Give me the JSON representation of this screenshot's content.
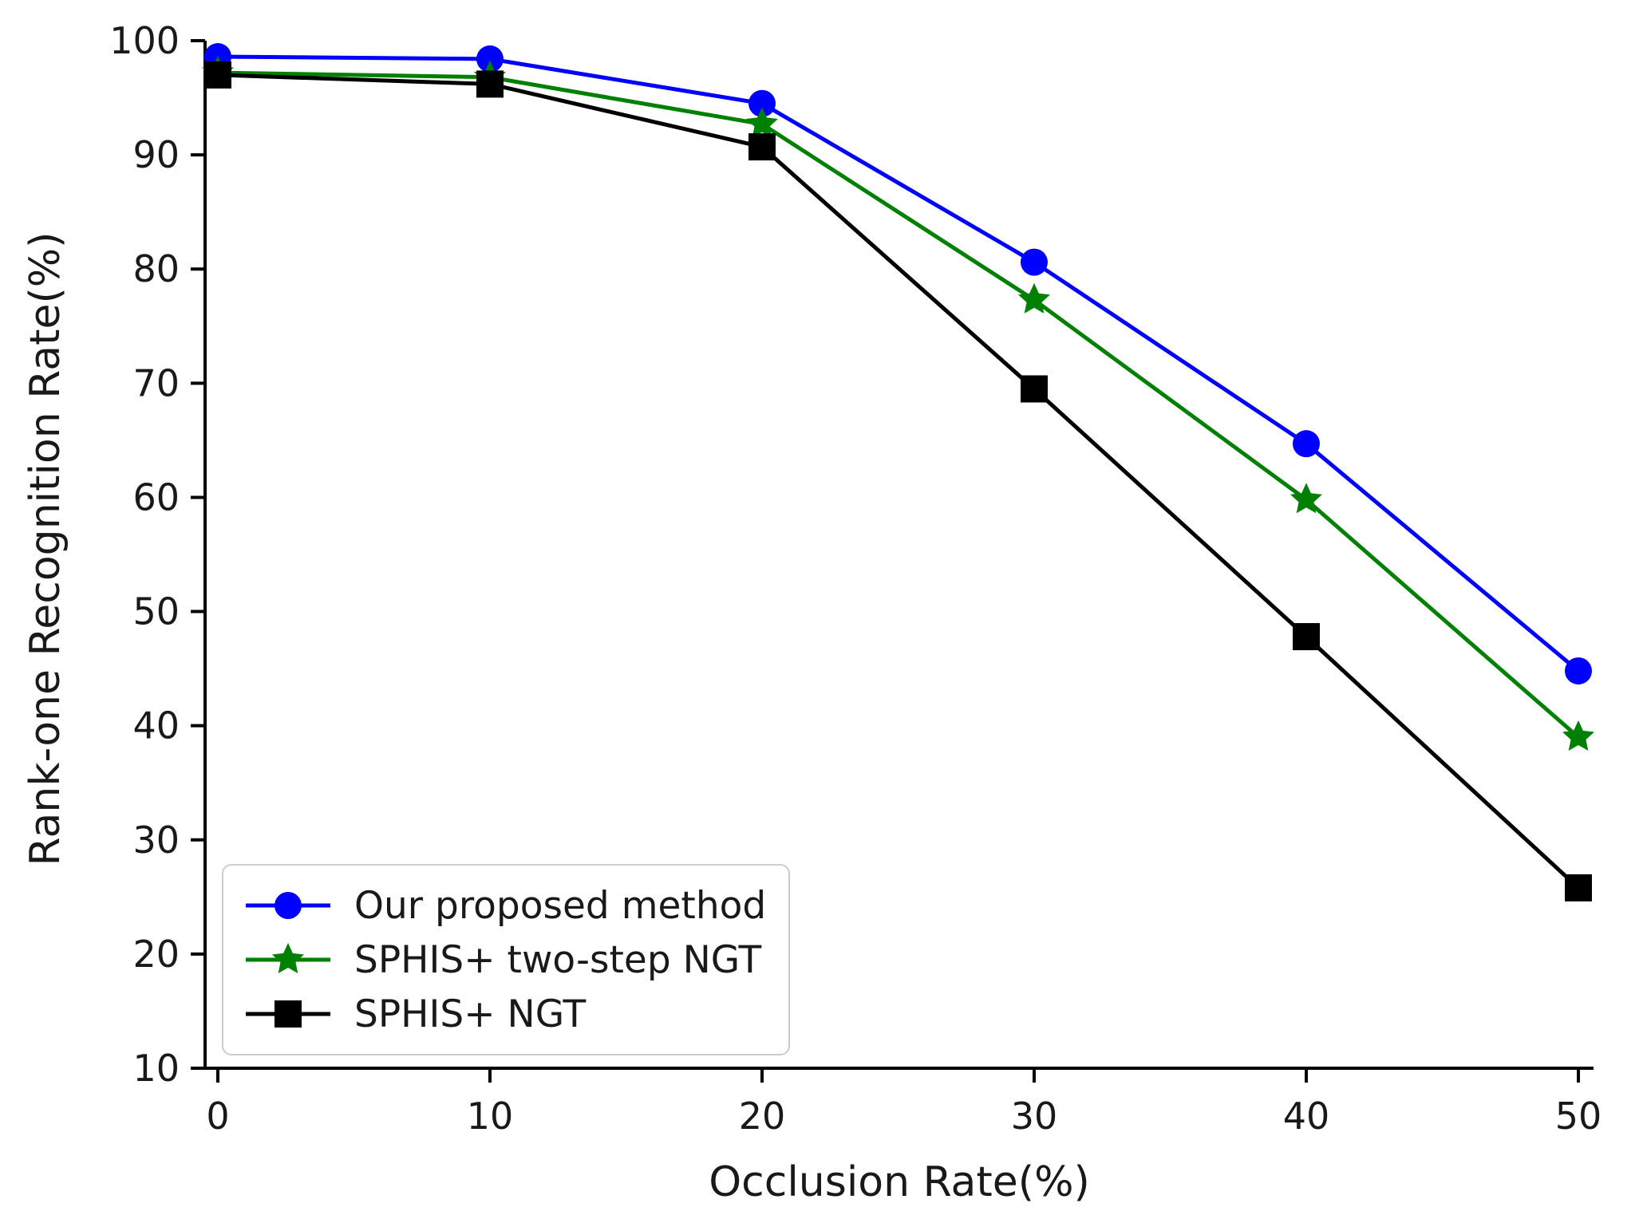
{
  "chart_data": {
    "type": "line",
    "title": "",
    "xlabel": "Occlusion Rate(%)",
    "ylabel": "Rank-one Recognition Rate(%)",
    "x": [
      0,
      10,
      20,
      30,
      40,
      50
    ],
    "xlim": [
      0,
      50
    ],
    "ylim": [
      10,
      100
    ],
    "xticks": [
      0,
      10,
      20,
      30,
      40,
      50
    ],
    "yticks": [
      10,
      20,
      30,
      40,
      50,
      60,
      70,
      80,
      90,
      100
    ],
    "grid": false,
    "legend_position": "lower-left",
    "series": [
      {
        "name": "Our proposed method",
        "color": "#0000ff",
        "marker": "circle",
        "values": [
          98.6,
          98.4,
          94.5,
          80.6,
          64.7,
          44.8
        ]
      },
      {
        "name": "SPHIS+ two-step NGT",
        "color": "#008000",
        "marker": "star",
        "values": [
          97.2,
          96.8,
          92.7,
          77.3,
          59.8,
          39.0
        ]
      },
      {
        "name": "SPHIS+ NGT",
        "color": "#000000",
        "marker": "square",
        "values": [
          97.0,
          96.2,
          90.7,
          69.5,
          47.8,
          25.8
        ]
      }
    ]
  }
}
